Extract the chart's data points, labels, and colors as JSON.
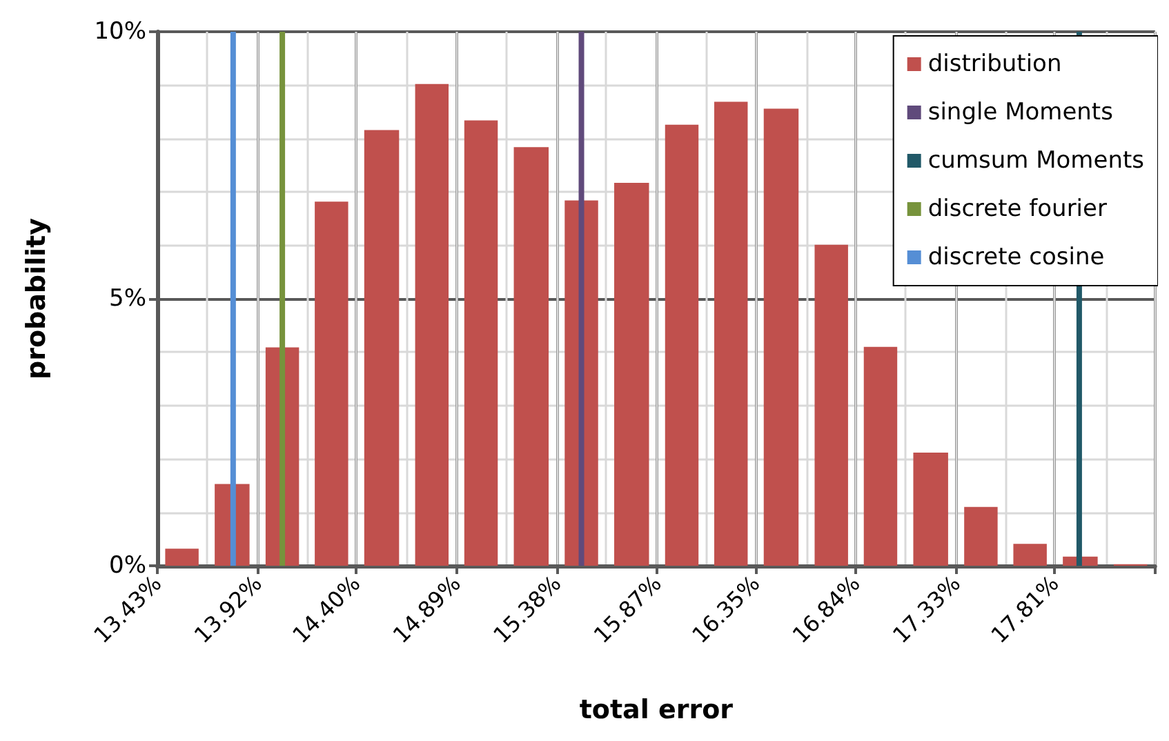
{
  "chart_data": {
    "type": "histogram",
    "xlabel": "total error",
    "ylabel": "probability",
    "bins": [
      13.43,
      13.67,
      13.92,
      14.16,
      14.4,
      14.65,
      14.89,
      15.13,
      15.38,
      15.62,
      15.87,
      16.11,
      16.35,
      16.6,
      16.84,
      17.08,
      17.33,
      17.57,
      17.81,
      18.06,
      18.3
    ],
    "series": [
      {
        "name": "distribution",
        "color": "#c0504d",
        "values": [
          0.32,
          1.53,
          4.09,
          6.82,
          8.16,
          9.02,
          8.34,
          7.84,
          6.84,
          7.17,
          8.26,
          8.69,
          8.56,
          6.01,
          4.1,
          2.12,
          1.1,
          0.41,
          0.17,
          0.03
        ]
      },
      {
        "type": "line",
        "name": "single Moments",
        "color": "#604a7b",
        "x": [
          15.5,
          15.5
        ],
        "values": [
          0,
          10
        ]
      },
      {
        "type": "line",
        "name": "cumsum Moments",
        "color": "#215968",
        "x": [
          17.93,
          17.93
        ],
        "values": [
          0,
          10
        ]
      },
      {
        "type": "line",
        "name": "discrete fourier",
        "color": "#77933c",
        "x": [
          14.04,
          14.04
        ],
        "values": [
          0,
          10
        ]
      },
      {
        "type": "line",
        "name": "discrete cosine",
        "color": "#558ed5",
        "x": [
          13.8,
          13.8
        ],
        "values": [
          0,
          10
        ]
      }
    ],
    "xlim": [
      13.43,
      18.3
    ],
    "xticks": [
      {
        "value": 13.43,
        "label": "13.43%"
      },
      {
        "value": 13.92,
        "label": "13.92%"
      },
      {
        "value": 14.4,
        "label": "14.40%"
      },
      {
        "value": 14.89,
        "label": "14.89%"
      },
      {
        "value": 15.38,
        "label": "15.38%"
      },
      {
        "value": 15.87,
        "label": "15.87%"
      },
      {
        "value": 16.35,
        "label": "16.35%"
      },
      {
        "value": 16.84,
        "label": "16.84%"
      },
      {
        "value": 17.33,
        "label": "17.33%"
      },
      {
        "value": 17.81,
        "label": "17.81%"
      },
      {
        "value": 18.3,
        "label": null
      }
    ],
    "ylim": [
      0,
      10
    ],
    "yticks": [
      {
        "value": 0,
        "label": "0%"
      },
      {
        "value": 5,
        "label": "5%"
      },
      {
        "value": 10,
        "label": "10%"
      }
    ],
    "grid": true,
    "legend": "top right",
    "marker": "none"
  }
}
